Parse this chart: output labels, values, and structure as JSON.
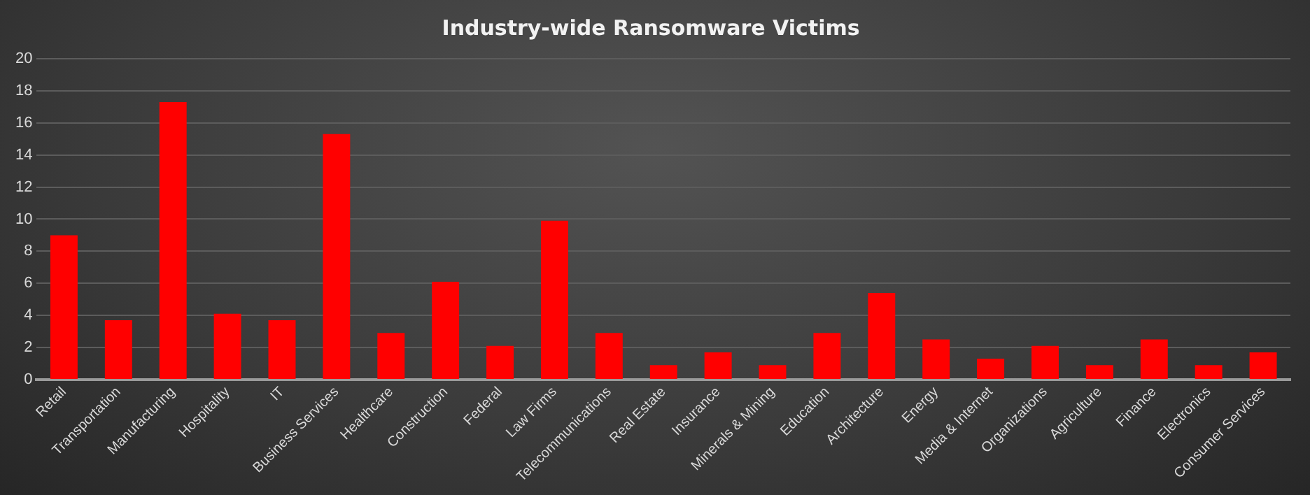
{
  "chart_data": {
    "type": "bar",
    "title": "Industry-wide Ransomware Victims",
    "categories": [
      "Retail",
      "Transportation",
      "Manufacturing",
      "Hospitality",
      "IT",
      "Business Services",
      "Healthcare",
      "Construction",
      "Federal",
      "Law Firms",
      "Telecommunications",
      "Real Estate",
      "Insurance",
      "Minerals & Mining",
      "Education",
      "Architecture",
      "Energy",
      "Media & Internet",
      "Organizations",
      "Agriculture",
      "Finance",
      "Electronics",
      "Consumer Services"
    ],
    "values": [
      9,
      3.7,
      17.3,
      4.1,
      3.7,
      15.3,
      2.9,
      6.1,
      2.1,
      9.9,
      2.9,
      0.9,
      1.7,
      0.9,
      2.9,
      5.4,
      2.5,
      1.3,
      2.1,
      0.9,
      2.5,
      0.9,
      1.7
    ],
    "color": "#ff0000",
    "ylim": [
      0,
      20
    ],
    "yticks": [
      0,
      2,
      4,
      6,
      8,
      10,
      12,
      14,
      16,
      18,
      20
    ],
    "grid": "y"
  }
}
